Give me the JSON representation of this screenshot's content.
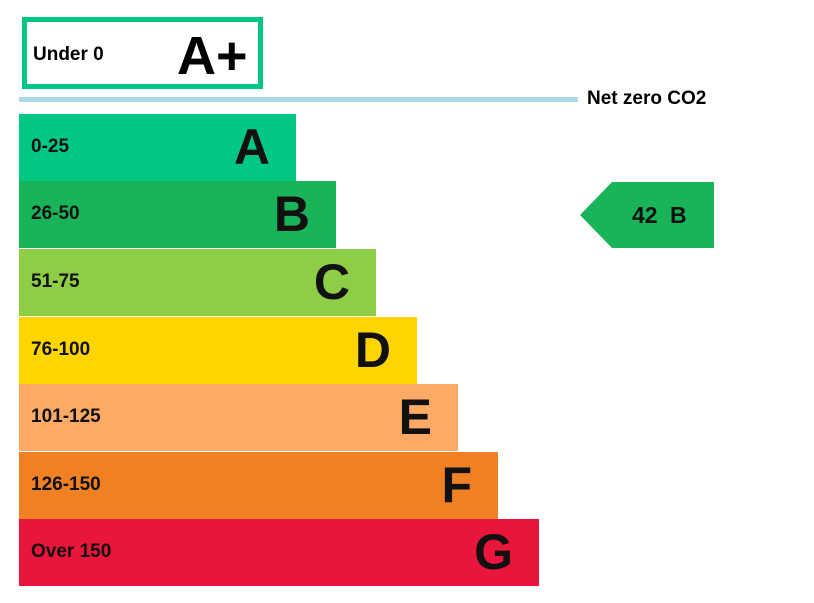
{
  "top_rating": {
    "range": "Under 0",
    "letter": "A+",
    "color": "#00c781"
  },
  "net_zero": {
    "label": "Net zero CO2",
    "line_color": "#add8e6"
  },
  "bands": [
    {
      "range": "0-25",
      "letter": "A",
      "color": "#00c781"
    },
    {
      "range": "26-50",
      "letter": "B",
      "color": "#19b459"
    },
    {
      "range": "51-75",
      "letter": "C",
      "color": "#8dce46"
    },
    {
      "range": "76-100",
      "letter": "D",
      "color": "#ffd500"
    },
    {
      "range": "101-125",
      "letter": "E",
      "color": "#fcaa65"
    },
    {
      "range": "126-150",
      "letter": "F",
      "color": "#ef8023"
    },
    {
      "range": "Over 150",
      "letter": "G",
      "color": "#e9153b"
    }
  ],
  "current_rating": {
    "value": "42",
    "letter": "B",
    "color": "#19b459"
  }
}
